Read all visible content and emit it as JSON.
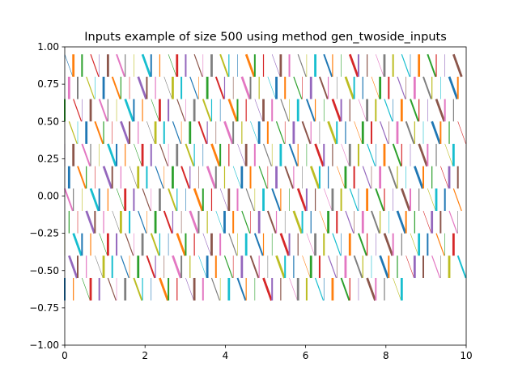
{
  "chart_data": {
    "type": "line",
    "title": "Inputs example of size 500 using method gen_twoside_inputs",
    "xlabel": "",
    "ylabel": "",
    "xlim": [
      0,
      10
    ],
    "ylim": [
      -1.0,
      1.0
    ],
    "x_ticks": [
      "0",
      "2",
      "4",
      "6",
      "8",
      "10"
    ],
    "y_ticks": [
      "1.00",
      "0.75",
      "0.50",
      "0.25",
      "0.00",
      "−0.25",
      "−0.50",
      "−0.75",
      "−1.00"
    ],
    "grid": false,
    "legend": "none",
    "segment_count": 500,
    "x_max_segment": 9.9,
    "y_levels": [
      0.95,
      0.8,
      0.65,
      0.5,
      0.35,
      0.2,
      0.05,
      -0.1,
      -0.25,
      -0.4,
      -0.55,
      -0.7
    ],
    "palette": [
      "#1f77b4",
      "#ff7f0e",
      "#2ca02c",
      "#d62728",
      "#9467bd",
      "#8c564b",
      "#e377c2",
      "#7f7f7f",
      "#bcbd22",
      "#17becf"
    ],
    "description_of_marks": "Short slanted line segments between adjacent y-levels, one per input, cycling through the default color palette with varying line widths."
  }
}
